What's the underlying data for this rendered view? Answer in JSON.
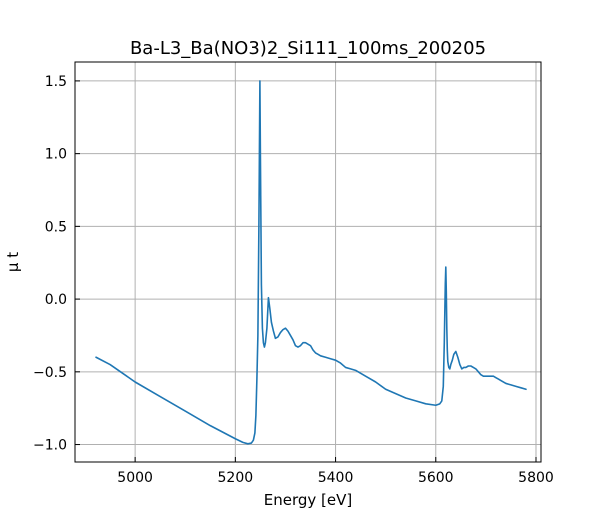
{
  "chart_data": {
    "type": "line",
    "title": "Ba-L3_Ba(NO3)2_Si111_100ms_200205",
    "xlabel": "Energy [eV]",
    "ylabel": "μ t",
    "xlim": [
      4880,
      5810
    ],
    "ylim": [
      -1.12,
      1.63
    ],
    "xticks": [
      5000,
      5200,
      5400,
      5600,
      5800
    ],
    "xtick_labels": [
      "5000",
      "5200",
      "5400",
      "5600",
      "5800"
    ],
    "yticks": [
      -1.0,
      -0.5,
      0.0,
      0.5,
      1.0,
      1.5
    ],
    "ytick_labels": [
      "−1.0",
      "−0.5",
      "0.0",
      "0.5",
      "1.0",
      "1.5"
    ],
    "grid": true,
    "series": [
      {
        "color": "#1f77b4",
        "x": [
          4922,
          4950,
          5000,
          5050,
          5100,
          5150,
          5200,
          5215,
          5225,
          5232,
          5236,
          5239,
          5241,
          5243,
          5245,
          5247,
          5248,
          5249,
          5250,
          5252,
          5254,
          5256,
          5258,
          5260,
          5263,
          5266,
          5269,
          5272,
          5276,
          5280,
          5285,
          5290,
          5295,
          5300,
          5305,
          5310,
          5315,
          5320,
          5325,
          5330,
          5335,
          5340,
          5345,
          5350,
          5355,
          5360,
          5365,
          5370,
          5380,
          5390,
          5400,
          5410,
          5420,
          5430,
          5440,
          5460,
          5480,
          5500,
          5520,
          5540,
          5560,
          5580,
          5600,
          5608,
          5612,
          5615,
          5617,
          5619,
          5620,
          5621,
          5622,
          5623,
          5624,
          5626,
          5628,
          5630,
          5633,
          5636,
          5640,
          5644,
          5648,
          5652,
          5656,
          5660,
          5665,
          5670,
          5675,
          5680,
          5685,
          5690,
          5695,
          5700,
          5705,
          5710,
          5715,
          5720,
          5725,
          5730,
          5740,
          5750,
          5760,
          5770,
          5780
        ],
        "y": [
          -0.4,
          -0.45,
          -0.57,
          -0.67,
          -0.77,
          -0.87,
          -0.96,
          -0.985,
          -0.995,
          -0.99,
          -0.97,
          -0.92,
          -0.8,
          -0.55,
          -0.25,
          0.5,
          1.0,
          1.5,
          1.0,
          0.1,
          -0.2,
          -0.3,
          -0.33,
          -0.3,
          -0.2,
          0.01,
          -0.07,
          -0.16,
          -0.22,
          -0.27,
          -0.26,
          -0.23,
          -0.21,
          -0.2,
          -0.22,
          -0.25,
          -0.28,
          -0.32,
          -0.33,
          -0.32,
          -0.3,
          -0.3,
          -0.31,
          -0.32,
          -0.35,
          -0.37,
          -0.38,
          -0.39,
          -0.4,
          -0.41,
          -0.42,
          -0.44,
          -0.47,
          -0.48,
          -0.49,
          -0.53,
          -0.57,
          -0.62,
          -0.65,
          -0.68,
          -0.7,
          -0.72,
          -0.73,
          -0.72,
          -0.7,
          -0.6,
          -0.3,
          0.1,
          0.22,
          0.05,
          -0.2,
          -0.35,
          -0.43,
          -0.47,
          -0.48,
          -0.45,
          -0.42,
          -0.38,
          -0.36,
          -0.4,
          -0.45,
          -0.48,
          -0.47,
          -0.47,
          -0.46,
          -0.46,
          -0.47,
          -0.48,
          -0.5,
          -0.52,
          -0.53,
          -0.53,
          -0.53,
          -0.53,
          -0.53,
          -0.54,
          -0.55,
          -0.56,
          -0.58,
          -0.59,
          -0.6,
          -0.61,
          -0.62
        ]
      }
    ]
  }
}
